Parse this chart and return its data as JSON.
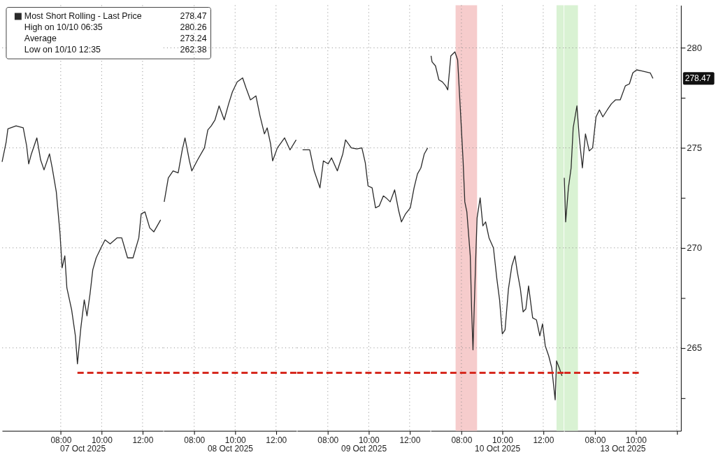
{
  "chart_data": [
    {
      "type": "line",
      "xlabel": "07 Oct 2025",
      "tick_labels": "x",
      "grid": true,
      "legend": "top left",
      "xlim": [
        "2025-10-07T05:08",
        "2025-10-07T13:00"
      ],
      "xticks": [
        {
          "value": "2025-10-07T08:00",
          "label": "08:00"
        },
        {
          "value": "2025-10-07T10:00",
          "label": "10:00"
        },
        {
          "value": "2025-10-07T12:00",
          "label": "12:00"
        }
      ],
      "ylim": [
        260.85,
        282.13
      ],
      "yticks": [
        265,
        270,
        275,
        280
      ],
      "series": [
        {
          "name": "Most Short Rolling - Last Price",
          "color": "#2a2a2a",
          "line_style": "solid",
          "x": [
            "2025-10-07T05:08",
            "2025-10-07T05:20",
            "2025-10-07T05:25",
            "2025-10-07T05:49",
            "2025-10-07T06:10",
            "2025-10-07T06:20",
            "2025-10-07T06:26",
            "2025-10-07T06:34",
            "2025-10-07T06:50",
            "2025-10-07T07:01",
            "2025-10-07T07:11",
            "2025-10-07T07:27",
            "2025-10-07T07:35",
            "2025-10-07T07:47",
            "2025-10-07T07:58",
            "2025-10-07T08:04",
            "2025-10-07T08:12",
            "2025-10-07T08:18",
            "2025-10-07T08:32",
            "2025-10-07T08:43",
            "2025-10-07T08:49",
            "2025-10-07T08:59",
            "2025-10-07T09:09",
            "2025-10-07T09:17",
            "2025-10-07T09:26",
            "2025-10-07T09:34",
            "2025-10-07T09:44",
            "2025-10-07T09:58",
            "2025-10-07T10:10",
            "2025-10-07T10:25",
            "2025-10-07T10:45",
            "2025-10-07T10:59",
            "2025-10-07T11:16",
            "2025-10-07T11:32",
            "2025-10-07T11:49",
            "2025-10-07T11:56",
            "2025-10-07T12:07",
            "2025-10-07T12:21",
            "2025-10-07T12:33",
            "2025-10-07T12:53"
          ],
          "values": [
            274.3,
            275.3,
            275.95,
            276.1,
            276.0,
            275.1,
            274.2,
            274.7,
            275.5,
            274.4,
            273.9,
            274.7,
            274.0,
            272.8,
            270.7,
            269.0,
            269.6,
            268.0,
            266.9,
            265.6,
            264.2,
            266.0,
            267.4,
            266.6,
            267.7,
            268.9,
            269.5,
            270.0,
            270.4,
            270.2,
            270.5,
            270.5,
            269.5,
            269.5,
            270.5,
            271.7,
            271.8,
            271.0,
            270.8,
            271.4
          ]
        },
        {
          "color": "#d62a1f",
          "line_style": "dashed",
          "x": [
            "2025-10-07T08:49",
            "2025-10-07T13:00"
          ],
          "values": [
            263.75,
            263.75
          ]
        }
      ],
      "annotations": [
        "278.47",
        "High on 10/10 06:35",
        "280.26",
        "Average",
        "273.24",
        "Low on 10/10 12:35",
        "262.38"
      ]
    },
    {
      "type": "line",
      "xlabel": "08 Oct 2025",
      "tick_labels": "x",
      "grid": true,
      "xlim": [
        "2025-10-08T06:30",
        "2025-10-08T13:00"
      ],
      "xticks": [
        {
          "value": "2025-10-08T08:00",
          "label": "08:00"
        },
        {
          "value": "2025-10-08T10:00",
          "label": "10:00"
        },
        {
          "value": "2025-10-08T12:00",
          "label": "12:00"
        }
      ],
      "ylim": [
        260.85,
        282.13
      ],
      "yticks": [
        265,
        270,
        275,
        280
      ],
      "series": [
        {
          "color": "#2a2a2a",
          "line_style": "solid",
          "x": [
            "2025-10-08T06:32",
            "2025-10-08T06:44",
            "2025-10-08T06:58",
            "2025-10-08T07:13",
            "2025-10-08T07:25",
            "2025-10-08T07:33",
            "2025-10-08T07:46",
            "2025-10-08T07:53",
            "2025-10-08T08:10",
            "2025-10-08T08:30",
            "2025-10-08T08:40",
            "2025-10-08T08:50",
            "2025-10-08T09:01",
            "2025-10-08T09:13",
            "2025-10-08T09:28",
            "2025-10-08T09:41",
            "2025-10-08T09:52",
            "2025-10-08T10:06",
            "2025-10-08T10:22",
            "2025-10-08T10:32",
            "2025-10-08T10:45",
            "2025-10-08T11:01",
            "2025-10-08T11:13",
            "2025-10-08T11:26",
            "2025-10-08T11:34",
            "2025-10-08T11:44",
            "2025-10-08T11:50",
            "2025-10-08T12:04",
            "2025-10-08T12:25",
            "2025-10-08T12:41",
            "2025-10-08T12:59"
          ],
          "values": [
            272.3,
            273.5,
            273.85,
            273.75,
            274.9,
            275.5,
            274.35,
            273.85,
            274.4,
            275.0,
            275.9,
            276.1,
            276.4,
            277.1,
            276.4,
            277.2,
            277.8,
            278.3,
            278.5,
            278.0,
            277.4,
            277.6,
            276.6,
            275.7,
            276.0,
            275.2,
            274.35,
            275.0,
            275.5,
            274.9,
            275.4
          ]
        },
        {
          "color": "#d62a1f",
          "line_style": "dashed",
          "x": [
            "2025-10-08T06:30",
            "2025-10-08T13:00"
          ],
          "values": [
            263.75,
            263.75
          ]
        }
      ]
    },
    {
      "type": "line",
      "xlabel": "09 Oct 2025",
      "tick_labels": "x",
      "grid": true,
      "xlim": [
        "2025-10-09T06:30",
        "2025-10-09T13:00"
      ],
      "xticks": [
        {
          "value": "2025-10-09T08:00",
          "label": "08:00"
        },
        {
          "value": "2025-10-09T10:00",
          "label": "10:00"
        },
        {
          "value": "2025-10-09T12:00",
          "label": "12:00"
        }
      ],
      "ylim": [
        260.85,
        282.13
      ],
      "yticks": [
        265,
        270,
        275,
        280
      ],
      "series": [
        {
          "color": "#2a2a2a",
          "line_style": "solid",
          "x": [
            "2025-10-09T06:46",
            "2025-10-09T07:07",
            "2025-10-09T07:20",
            "2025-10-09T07:37",
            "2025-10-09T07:47",
            "2025-10-09T08:01",
            "2025-10-09T08:11",
            "2025-10-09T08:28",
            "2025-10-09T08:44",
            "2025-10-09T08:52",
            "2025-10-09T09:09",
            "2025-10-09T09:25",
            "2025-10-09T09:40",
            "2025-10-09T09:50",
            "2025-10-09T09:58",
            "2025-10-09T10:10",
            "2025-10-09T10:20",
            "2025-10-09T10:31",
            "2025-10-09T10:43",
            "2025-10-09T10:51",
            "2025-10-09T11:03",
            "2025-10-09T11:16",
            "2025-10-09T11:28",
            "2025-10-09T11:36",
            "2025-10-09T11:48",
            "2025-10-09T12:02",
            "2025-10-09T12:13",
            "2025-10-09T12:23",
            "2025-10-09T12:33",
            "2025-10-09T12:43",
            "2025-10-09T12:53"
          ],
          "values": [
            274.9,
            274.9,
            273.85,
            273.0,
            274.35,
            274.2,
            274.5,
            273.85,
            274.7,
            275.4,
            275.0,
            274.95,
            275.0,
            274.25,
            273.1,
            273.0,
            272.0,
            272.1,
            272.6,
            272.5,
            272.3,
            272.9,
            271.85,
            271.3,
            271.7,
            272.0,
            273.0,
            273.7,
            274.0,
            274.7,
            275.0
          ]
        },
        {
          "color": "#d62a1f",
          "line_style": "dashed",
          "x": [
            "2025-10-09T06:30",
            "2025-10-09T13:00"
          ],
          "values": [
            263.75,
            263.75
          ]
        }
      ]
    },
    {
      "type": "line",
      "xlabel": "10 Oct 2025",
      "tick_labels": "x",
      "grid": true,
      "xlim": [
        "2025-10-10T06:30",
        "2025-10-10T13:00"
      ],
      "xticks": [
        {
          "value": "2025-10-10T08:00",
          "label": "08:00"
        },
        {
          "value": "2025-10-10T10:00",
          "label": "10:00"
        },
        {
          "value": "2025-10-10T12:00",
          "label": "12:00"
        }
      ],
      "ylim": [
        260.85,
        282.13
      ],
      "yticks": [
        265,
        270,
        275,
        280
      ],
      "bands": [
        {
          "axis": "x",
          "from": "2025-10-10T07:43",
          "to": "2025-10-10T08:46",
          "color": "#f6cccc"
        },
        {
          "axis": "x",
          "from": "2025-10-10T12:39",
          "to": "2025-10-10T13:00",
          "color": "#d9f2d3"
        }
      ],
      "series": [
        {
          "color": "#2a2a2a",
          "line_style": "solid",
          "x": [
            "2025-10-10T06:31",
            "2025-10-10T06:34",
            "2025-10-10T06:44",
            "2025-10-10T06:54",
            "2025-10-10T07:04",
            "2025-10-10T07:14",
            "2025-10-10T07:20",
            "2025-10-10T07:29",
            "2025-10-10T07:41",
            "2025-10-10T07:49",
            "2025-10-10T07:57",
            "2025-10-10T08:05",
            "2025-10-10T08:10",
            "2025-10-10T08:16",
            "2025-10-10T08:26",
            "2025-10-10T08:30",
            "2025-10-10T08:34",
            "2025-10-10T08:38",
            "2025-10-10T08:43",
            "2025-10-10T08:46",
            "2025-10-10T08:55",
            "2025-10-10T09:03",
            "2025-10-10T09:11",
            "2025-10-10T09:21",
            "2025-10-10T09:34",
            "2025-10-10T09:44",
            "2025-10-10T09:52",
            "2025-10-10T10:00",
            "2025-10-10T10:08",
            "2025-10-10T10:18",
            "2025-10-10T10:28",
            "2025-10-10T10:37",
            "2025-10-10T10:44",
            "2025-10-10T10:53",
            "2025-10-10T11:01",
            "2025-10-10T11:09",
            "2025-10-10T11:17",
            "2025-10-10T11:29",
            "2025-10-10T11:40",
            "2025-10-10T11:50",
            "2025-10-10T11:58",
            "2025-10-10T12:06",
            "2025-10-10T12:16",
            "2025-10-10T12:25",
            "2025-10-10T12:35",
            "2025-10-10T12:39",
            "2025-10-10T12:47",
            "2025-10-10T12:55"
          ],
          "values": [
            279.6,
            279.3,
            279.1,
            278.4,
            278.3,
            278.1,
            277.9,
            279.6,
            279.8,
            279.4,
            276.9,
            274.35,
            272.3,
            271.8,
            269.6,
            266.9,
            264.9,
            267.2,
            270.0,
            271.5,
            272.5,
            271.1,
            271.3,
            270.5,
            270.0,
            268.45,
            267.4,
            265.7,
            265.9,
            267.95,
            269.1,
            269.6,
            268.8,
            267.95,
            266.8,
            266.95,
            268.1,
            266.5,
            266.4,
            265.6,
            266.2,
            265.1,
            264.6,
            264.0,
            262.4,
            264.35,
            264.0,
            263.6
          ]
        },
        {
          "color": "#d62a1f",
          "line_style": "dashed",
          "x": [
            "2025-10-10T06:30",
            "2025-10-10T13:00"
          ],
          "values": [
            263.75,
            263.75
          ]
        }
      ]
    },
    {
      "type": "line",
      "xlabel": "13 Oct 2025",
      "grid": true,
      "xlim": [
        "2025-10-13T06:30",
        "2025-10-13T12:12"
      ],
      "xticks": [
        {
          "value": "2025-10-13T08:00",
          "label": "08:00"
        },
        {
          "value": "2025-10-13T10:00",
          "label": "10:00"
        },
        {
          "value": "2025-10-13T12:00",
          "label": null
        }
      ],
      "ylim": [
        260.85,
        282.13
      ],
      "yticks": [
        {
          "value": 262.5,
          "label": null
        },
        265,
        {
          "value": 267.5,
          "label": null
        },
        270,
        {
          "value": 272.5,
          "label": null
        },
        275,
        {
          "value": 277.5,
          "label": null
        },
        280
      ],
      "bands": [
        {
          "axis": "x",
          "from": "2025-10-13T06:30",
          "to": "2025-10-13T07:10",
          "color": "#d9f2d3"
        }
      ],
      "series": [
        {
          "color": "#2a2a2a",
          "line_style": "solid",
          "x": [
            "2025-10-13T06:30",
            "2025-10-13T06:34",
            "2025-10-13T06:42",
            "2025-10-13T06:50",
            "2025-10-13T06:56",
            "2025-10-13T07:07",
            "2025-10-13T07:14",
            "2025-10-13T07:23",
            "2025-10-13T07:32",
            "2025-10-13T07:43",
            "2025-10-13T07:53",
            "2025-10-13T08:03",
            "2025-10-13T08:13",
            "2025-10-13T08:23",
            "2025-10-13T08:36",
            "2025-10-13T08:48",
            "2025-10-13T09:00",
            "2025-10-13T09:14",
            "2025-10-13T09:29",
            "2025-10-13T09:41",
            "2025-10-13T09:51",
            "2025-10-13T10:02",
            "2025-10-13T10:16",
            "2025-10-13T10:29",
            "2025-10-13T10:42",
            "2025-10-13T10:50"
          ],
          "values": [
            273.5,
            271.3,
            273.0,
            274.0,
            276.0,
            277.1,
            275.5,
            274.0,
            275.7,
            274.85,
            275.0,
            276.55,
            276.9,
            276.55,
            276.9,
            277.2,
            277.4,
            277.4,
            278.1,
            278.2,
            278.75,
            278.9,
            278.85,
            278.8,
            278.75,
            278.47
          ]
        },
        {
          "color": "#d62a1f",
          "line_style": "dashed",
          "x": [
            "2025-10-13T06:30",
            "2025-10-13T10:09"
          ],
          "values": [
            263.75,
            263.75
          ]
        }
      ],
      "annotations": [
        "278.47"
      ]
    }
  ]
}
